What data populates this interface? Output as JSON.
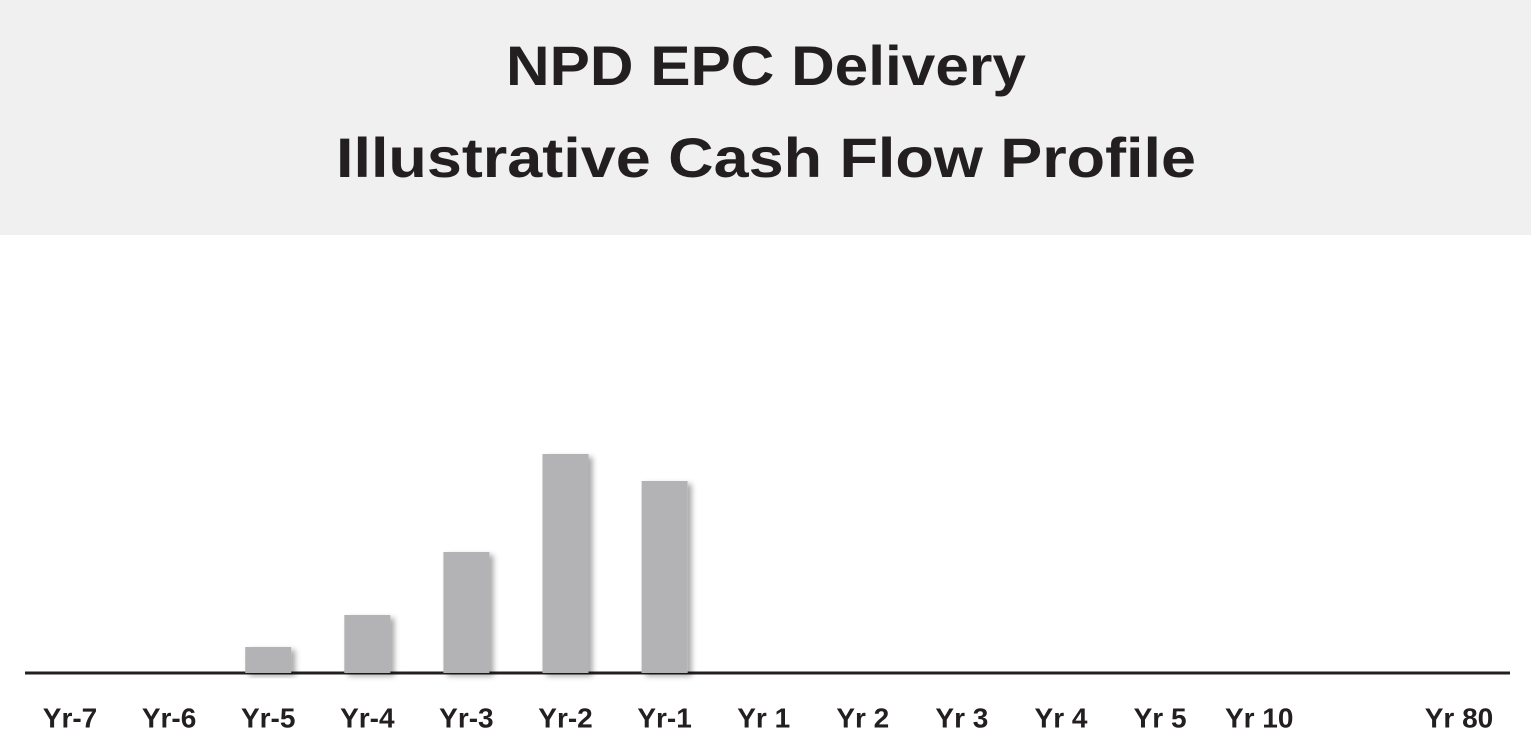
{
  "chart_data": {
    "type": "bar",
    "title": "NPD EPC Delivery",
    "subtitle": "Illustrative Cash Flow Profile",
    "categories": [
      "Yr-7",
      "Yr-6",
      "Yr-5",
      "Yr-4",
      "Yr-3",
      "Yr-2",
      "Yr-1",
      "Yr 1",
      "Yr 2",
      "Yr 3",
      "Yr 4",
      "Yr 5",
      "Yr 10",
      "Yr 80"
    ],
    "values": [
      null,
      null,
      26,
      58,
      121,
      219,
      192,
      null,
      null,
      null,
      null,
      null,
      null,
      null
    ],
    "color": "#b3b3b5"
  }
}
